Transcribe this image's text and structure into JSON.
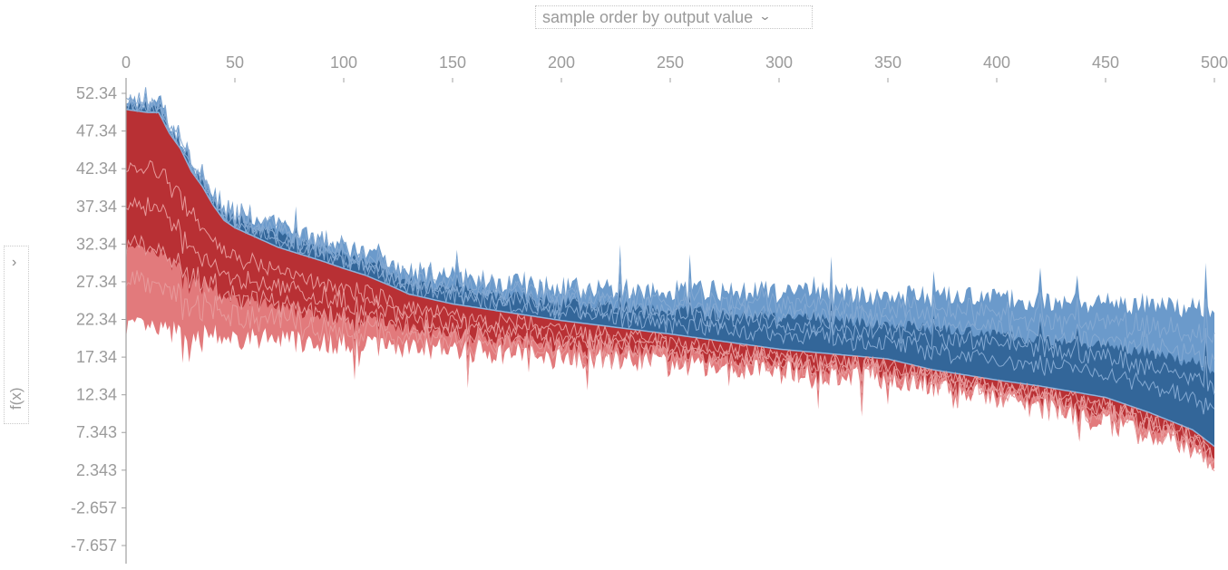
{
  "controls": {
    "ordering_label": "sample order by output value",
    "ylabel": "f(x)"
  },
  "chart_data": {
    "type": "area",
    "title": "",
    "xlabel": "",
    "ylabel": "f(x)",
    "xlim": [
      0,
      500
    ],
    "ylim": [
      -10,
      53.5
    ],
    "x_ticks": [
      "0",
      "50",
      "100",
      "150",
      "200",
      "250",
      "300",
      "350",
      "400",
      "450",
      "500"
    ],
    "y_ticks": [
      "52.34",
      "47.34",
      "42.34",
      "37.34",
      "32.34",
      "27.34",
      "22.34",
      "17.34",
      "12.34",
      "7.343",
      "2.343",
      "-2.657",
      "-7.657"
    ],
    "y_tick_values": [
      52.34,
      47.34,
      42.34,
      37.34,
      32.34,
      27.34,
      22.34,
      17.34,
      12.34,
      7.343,
      2.343,
      -2.657,
      -7.657
    ],
    "colors": {
      "positive_dark": "#b83034",
      "positive_light": "#e27a7c",
      "negative_dark": "#336699",
      "negative_light": "#6b9acb"
    },
    "x": [
      0,
      10,
      15,
      20,
      25,
      30,
      35,
      40,
      45,
      50,
      60,
      70,
      80,
      90,
      100,
      110,
      120,
      130,
      150,
      175,
      200,
      250,
      300,
      350,
      370,
      400,
      420,
      450,
      470,
      490,
      500
    ],
    "output_value": [
      50.2,
      49.8,
      49.8,
      47.0,
      45.0,
      42.0,
      40.0,
      37.5,
      35.5,
      34.5,
      33.2,
      31.9,
      31.0,
      30.1,
      29.1,
      28.2,
      27.0,
      25.7,
      24.4,
      23.3,
      22.2,
      20.4,
      18.4,
      17.1,
      15.7,
      14.3,
      13.5,
      12.0,
      10.0,
      7.7,
      5.5
    ],
    "positive_bottom": [
      21.5,
      21.0,
      20.8,
      20.6,
      20.4,
      20.3,
      20.2,
      20.1,
      20.0,
      19.9,
      19.8,
      19.6,
      19.5,
      19.3,
      19.1,
      19.0,
      18.8,
      18.6,
      18.3,
      17.9,
      17.5,
      16.6,
      15.5,
      14.5,
      13.4,
      11.8,
      10.6,
      8.5,
      7.0,
      5.3,
      3.5
    ],
    "negative_top": [
      51.0,
      50.8,
      51.0,
      48.0,
      46.0,
      43.0,
      41.0,
      38.5,
      37.0,
      36.0,
      35.5,
      34.0,
      33.5,
      32.5,
      31.5,
      30.5,
      29.5,
      28.5,
      27.5,
      26.5,
      26.0,
      25.7,
      25.4,
      25.0,
      24.8,
      24.5,
      24.3,
      24.0,
      23.7,
      23.4,
      23.2
    ]
  }
}
